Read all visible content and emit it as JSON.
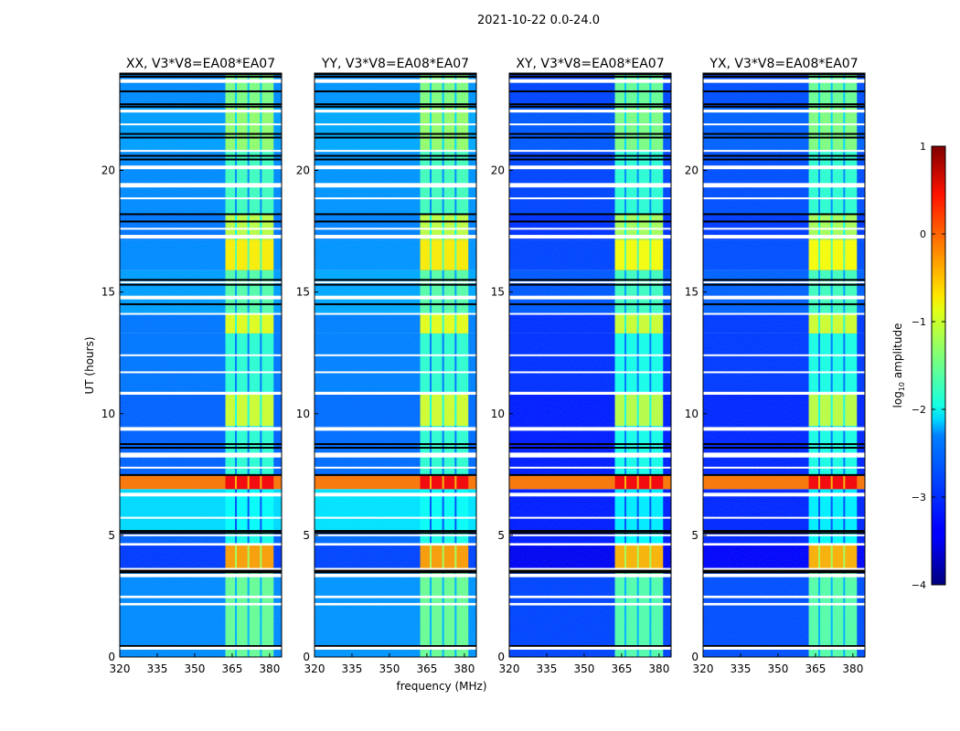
{
  "chart_data": {
    "type": "heatmap",
    "suptitle": "2021-10-22 0.0-24.0",
    "xlabel": "frequency (MHz)",
    "ylabel": "UT (hours)",
    "xlim": [
      320,
      384.8
    ],
    "ylim": [
      0,
      24
    ],
    "xticks": [
      "320",
      "335",
      "350",
      "365",
      "380"
    ],
    "xtick_values": [
      320,
      335,
      350,
      365,
      380
    ],
    "yticks": [
      "0",
      "5",
      "10",
      "15",
      "20"
    ],
    "ytick_values": [
      0,
      5,
      10,
      15,
      20
    ],
    "panels": [
      {
        "title": "XX, V3*V8=EA08*EA07",
        "bg_offset": 0.0,
        "cyan_zone": true
      },
      {
        "title": "YY, V3*V8=EA08*EA07",
        "bg_offset": 0.05,
        "cyan_zone": true
      },
      {
        "title": "XY, V3*V8=EA08*EA07",
        "bg_offset": -0.35,
        "cyan_zone": false
      },
      {
        "title": "YX, V3*V8=EA08*EA07",
        "bg_offset": -0.3,
        "cyan_zone": false
      }
    ],
    "rfi_band_mhz": [
      362.3,
      381.6
    ],
    "rfi_subband_edges_mhz": [
      366.5,
      371.5,
      376.5
    ],
    "segments": [
      {
        "ut": [
          0,
          3.5
        ],
        "bg": -2.7,
        "band": -1.6
      },
      {
        "ut": [
          3.5,
          4.6
        ],
        "bg": -3.1,
        "band": -0.4
      },
      {
        "ut": [
          4.6,
          5.2
        ],
        "bg": -2.9,
        "band": -2.0
      },
      {
        "ut": [
          5.2,
          6.9
        ],
        "bg": -2.3,
        "band": -2.1,
        "cyan": true
      },
      {
        "ut": [
          6.9,
          7.45
        ],
        "bg": -0.2,
        "band": 0.4
      },
      {
        "ut": [
          7.45,
          9.5
        ],
        "bg": -2.9,
        "band": -1.9
      },
      {
        "ut": [
          9.5,
          10.8
        ],
        "bg": -2.9,
        "band": -1.1
      },
      {
        "ut": [
          10.8,
          13.3
        ],
        "bg": -2.8,
        "band": -1.9
      },
      {
        "ut": [
          13.3,
          14.1
        ],
        "bg": -2.8,
        "band": -1.0
      },
      {
        "ut": [
          14.1,
          15.9
        ],
        "bg": -2.6,
        "band": -1.7
      },
      {
        "ut": [
          15.9,
          17.15
        ],
        "bg": -2.7,
        "band": -0.8
      },
      {
        "ut": [
          17.15,
          18.2
        ],
        "bg": -2.8,
        "band": -1.2
      },
      {
        "ut": [
          18.2,
          20.8
        ],
        "bg": -2.7,
        "band": -1.8
      },
      {
        "ut": [
          20.8,
          22.6
        ],
        "bg": -2.6,
        "band": -1.4
      },
      {
        "ut": [
          22.6,
          24
        ],
        "bg": -2.7,
        "band": -1.5
      }
    ],
    "flagged_gaps_ut": [
      [
        0.3,
        0.42
      ],
      [
        2.12,
        2.22
      ],
      [
        2.42,
        2.52
      ],
      [
        3.28,
        3.42
      ],
      [
        3.6,
        3.66
      ],
      [
        4.58,
        4.68
      ],
      [
        4.98,
        5.04
      ],
      [
        5.7,
        5.76
      ],
      [
        6.6,
        6.75
      ],
      [
        7.75,
        7.82
      ],
      [
        8.2,
        8.4
      ],
      [
        9.3,
        9.45
      ],
      [
        10.78,
        10.9
      ],
      [
        11.68,
        11.74
      ],
      [
        12.38,
        12.44
      ],
      [
        14.08,
        14.14
      ],
      [
        14.7,
        14.85
      ],
      [
        15.38,
        15.44
      ],
      [
        17.2,
        17.35
      ],
      [
        17.58,
        17.64
      ],
      [
        18.83,
        18.89
      ],
      [
        19.3,
        19.48
      ],
      [
        20.05,
        20.2
      ],
      [
        20.78,
        20.84
      ],
      [
        21.88,
        21.93
      ],
      [
        22.38,
        22.5
      ],
      [
        23.6,
        23.75
      ]
    ],
    "dark_lines_ut": [
      0.45,
      3.48,
      3.55,
      5.1,
      5.18,
      7.48,
      8.6,
      8.75,
      14.5,
      15.3,
      15.5,
      17.9,
      18.2,
      20.45,
      20.6,
      21.35,
      21.5,
      22.62,
      22.72,
      23.25,
      23.85,
      23.95
    ],
    "colorbar": {
      "label_main": "log",
      "label_sub": "10",
      "label_rest": " amplitude",
      "range": [
        -4,
        1
      ],
      "ticks": [
        "1",
        "0",
        "−1",
        "−2",
        "−3",
        "−4"
      ],
      "tick_values": [
        1,
        0,
        -1,
        -2,
        -3,
        -4
      ]
    }
  }
}
